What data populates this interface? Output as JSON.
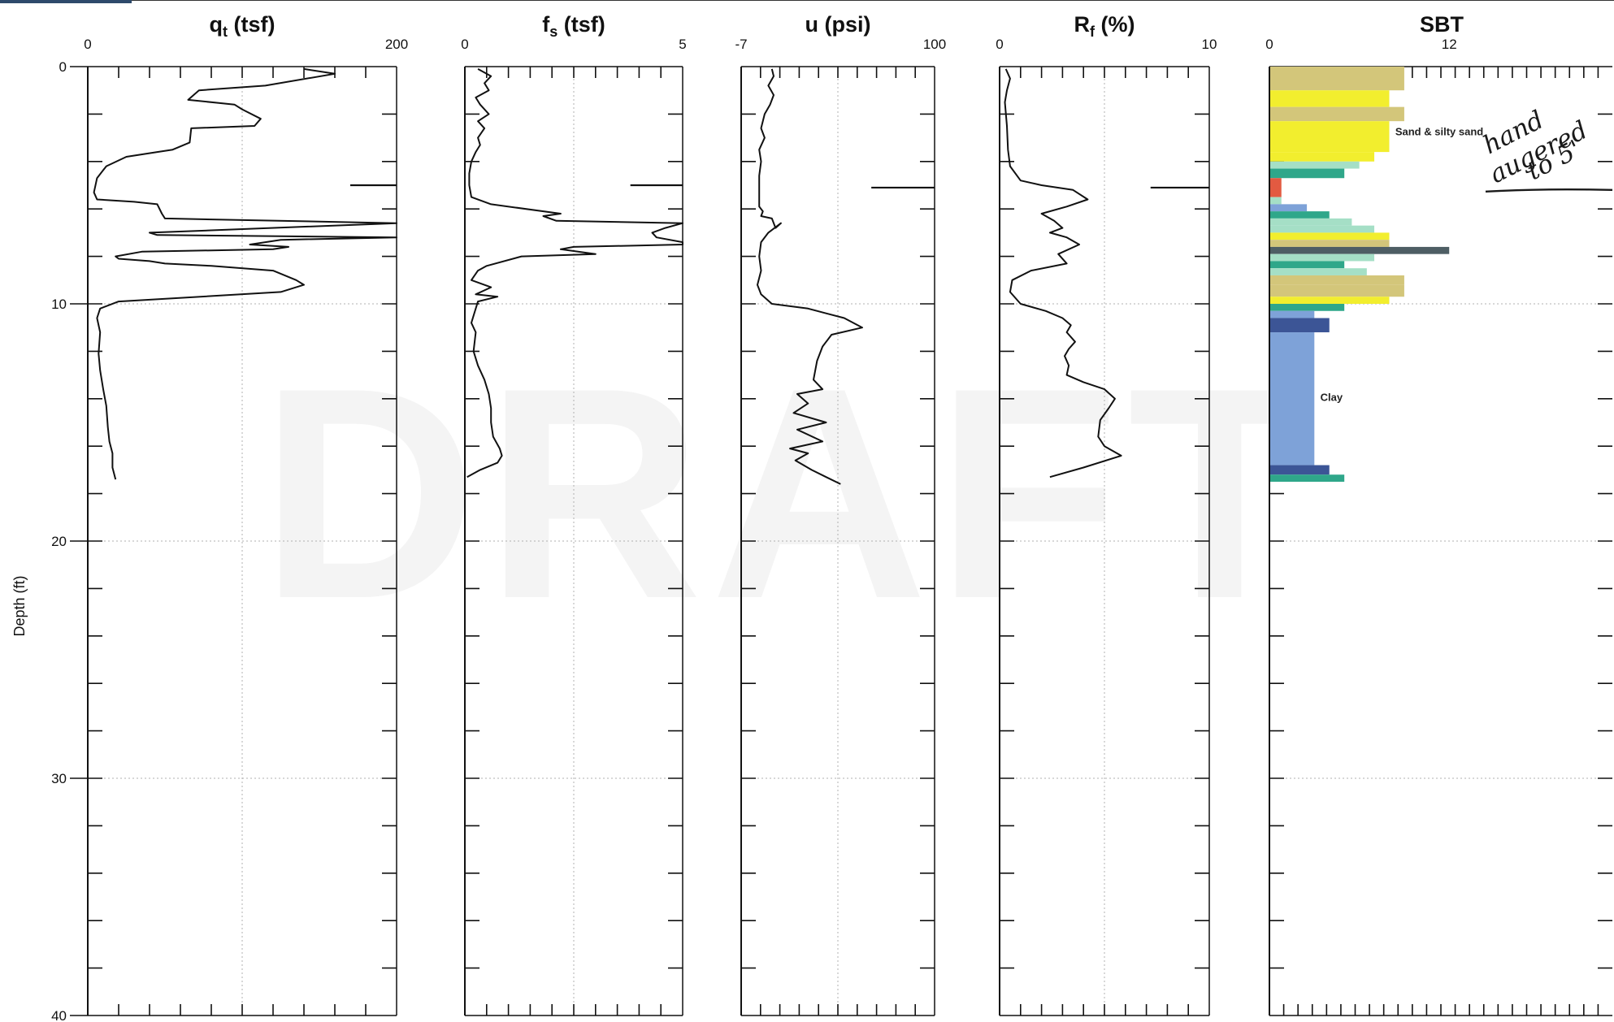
{
  "watermark": "DRAFT",
  "annotation": {
    "lines": [
      "hand",
      "augered",
      "to 5'"
    ],
    "mark_depth": 5.2
  },
  "colors": {
    "trace": "#111111",
    "grid": "#b0b0b0",
    "sbt_sand": "#f2ee2e",
    "sbt_silty_sand": "#d3c67a",
    "sbt_silt_mixture": "#2fa78a",
    "sbt_light_green": "#a5dfc6",
    "sbt_clay": "#7ea2d8",
    "sbt_dark_blue": "#3c5596",
    "sbt_gravelly": "#4e5e64",
    "sbt_sensitive": "#e35a41"
  },
  "chart_data": [
    {
      "type": "line",
      "id": "qt",
      "title": "q",
      "title_sub": "t",
      "title_tail": " (tsf)",
      "xlim": [
        0,
        200
      ],
      "xticks": [
        "0",
        "200"
      ],
      "ylim": [
        0,
        40
      ],
      "y_label": "Depth (ft)",
      "y_ticks": [
        "0",
        "10",
        "20",
        "30",
        "40"
      ],
      "points": [
        [
          140,
          0.1
        ],
        [
          160,
          0.3
        ],
        [
          115,
          0.8
        ],
        [
          72,
          1.0
        ],
        [
          65,
          1.4
        ],
        [
          95,
          1.6
        ],
        [
          100,
          1.8
        ],
        [
          112,
          2.2
        ],
        [
          108,
          2.5
        ],
        [
          67,
          2.6
        ],
        [
          66,
          3.2
        ],
        [
          55,
          3.5
        ],
        [
          45,
          3.6
        ],
        [
          25,
          3.8
        ],
        [
          12,
          4.2
        ],
        [
          6,
          4.7
        ],
        [
          4,
          5.3
        ],
        [
          6,
          5.6
        ],
        [
          30,
          5.7
        ],
        [
          45,
          5.8
        ],
        [
          48,
          6.2
        ],
        [
          50,
          6.4
        ],
        [
          200,
          6.6
        ],
        [
          80,
          6.9
        ],
        [
          40,
          7.0
        ],
        [
          45,
          7.1
        ],
        [
          200,
          7.2
        ],
        [
          125,
          7.3
        ],
        [
          105,
          7.5
        ],
        [
          130,
          7.6
        ],
        [
          120,
          7.7
        ],
        [
          35,
          7.8
        ],
        [
          18,
          8.0
        ],
        [
          20,
          8.1
        ],
        [
          40,
          8.2
        ],
        [
          50,
          8.3
        ],
        [
          80,
          8.4
        ],
        [
          120,
          8.6
        ],
        [
          135,
          9.0
        ],
        [
          140,
          9.2
        ],
        [
          125,
          9.5
        ],
        [
          20,
          9.9
        ],
        [
          8,
          10.2
        ],
        [
          6,
          10.6
        ],
        [
          8,
          11.2
        ],
        [
          7,
          12.1
        ],
        [
          8,
          12.8
        ],
        [
          10,
          13.6
        ],
        [
          12,
          14.3
        ],
        [
          13,
          15.2
        ],
        [
          14,
          15.8
        ],
        [
          16,
          16.3
        ],
        [
          16,
          16.9
        ],
        [
          18,
          17.4
        ]
      ],
      "spike": {
        "x": [
          170,
          200
        ],
        "y": 5.0
      }
    },
    {
      "type": "line",
      "id": "fs",
      "title": "f",
      "title_sub": "s",
      "title_tail": " (tsf)",
      "xlim": [
        0,
        5
      ],
      "xticks": [
        "0",
        "5"
      ],
      "ylim": [
        0,
        40
      ],
      "points": [
        [
          0.3,
          0.1
        ],
        [
          0.6,
          0.4
        ],
        [
          0.45,
          0.7
        ],
        [
          0.55,
          1.0
        ],
        [
          0.25,
          1.3
        ],
        [
          0.35,
          1.6
        ],
        [
          0.55,
          2.0
        ],
        [
          0.3,
          2.3
        ],
        [
          0.45,
          2.6
        ],
        [
          0.3,
          3.0
        ],
        [
          0.35,
          3.3
        ],
        [
          0.25,
          3.6
        ],
        [
          0.15,
          4.0
        ],
        [
          0.1,
          4.5
        ],
        [
          0.1,
          5.0
        ],
        [
          0.15,
          5.5
        ],
        [
          0.6,
          5.8
        ],
        [
          2.2,
          6.2
        ],
        [
          1.8,
          6.3
        ],
        [
          2.1,
          6.5
        ],
        [
          5.0,
          6.6
        ],
        [
          4.6,
          6.8
        ],
        [
          4.3,
          7.0
        ],
        [
          4.4,
          7.2
        ],
        [
          5.0,
          7.4
        ],
        [
          5.0,
          7.5
        ],
        [
          2.5,
          7.6
        ],
        [
          2.2,
          7.7
        ],
        [
          3.0,
          7.9
        ],
        [
          1.3,
          8.0
        ],
        [
          0.5,
          8.4
        ],
        [
          0.3,
          8.6
        ],
        [
          0.15,
          9.0
        ],
        [
          0.6,
          9.3
        ],
        [
          0.25,
          9.6
        ],
        [
          0.75,
          9.7
        ],
        [
          0.3,
          9.9
        ],
        [
          0.25,
          10.2
        ],
        [
          0.2,
          10.5
        ],
        [
          0.15,
          10.8
        ],
        [
          0.25,
          11.2
        ],
        [
          0.2,
          12.0
        ],
        [
          0.3,
          12.6
        ],
        [
          0.45,
          13.2
        ],
        [
          0.55,
          13.8
        ],
        [
          0.6,
          14.4
        ],
        [
          0.6,
          15.0
        ],
        [
          0.65,
          15.6
        ],
        [
          0.8,
          16.1
        ],
        [
          0.85,
          16.4
        ],
        [
          0.75,
          16.7
        ],
        [
          0.35,
          17.0
        ],
        [
          0.05,
          17.3
        ]
      ],
      "spike": {
        "x": [
          3.8,
          5.0
        ],
        "y": 5.0
      }
    },
    {
      "type": "line",
      "id": "u",
      "title": "u (psi)",
      "xlim": [
        -7,
        100
      ],
      "xticks": [
        "-7",
        "100"
      ],
      "ylim": [
        0,
        40
      ],
      "points": [
        [
          10,
          0.1
        ],
        [
          11,
          0.4
        ],
        [
          8,
          0.8
        ],
        [
          11,
          1.2
        ],
        [
          9,
          1.6
        ],
        [
          6,
          2.0
        ],
        [
          4,
          2.6
        ],
        [
          6,
          3.0
        ],
        [
          3,
          3.5
        ],
        [
          4,
          4.0
        ],
        [
          3,
          4.6
        ],
        [
          3,
          5.3
        ],
        [
          3,
          5.9
        ],
        [
          5,
          6.1
        ],
        [
          4,
          6.3
        ],
        [
          10,
          6.4
        ],
        [
          12,
          6.8
        ],
        [
          15,
          6.6
        ],
        [
          8,
          7.0
        ],
        [
          4,
          7.4
        ],
        [
          3,
          8.0
        ],
        [
          4,
          8.6
        ],
        [
          2,
          9.2
        ],
        [
          4,
          9.6
        ],
        [
          10,
          10.0
        ],
        [
          30,
          10.2
        ],
        [
          40,
          10.4
        ],
        [
          50,
          10.6
        ],
        [
          60,
          11.0
        ],
        [
          43,
          11.3
        ],
        [
          38,
          11.8
        ],
        [
          35,
          12.4
        ],
        [
          33,
          13.2
        ],
        [
          38,
          13.6
        ],
        [
          24,
          13.8
        ],
        [
          30,
          14.2
        ],
        [
          22,
          14.6
        ],
        [
          40,
          15.0
        ],
        [
          24,
          15.3
        ],
        [
          38,
          15.8
        ],
        [
          20,
          16.1
        ],
        [
          30,
          16.3
        ],
        [
          23,
          16.6
        ],
        [
          32,
          17.0
        ],
        [
          40,
          17.3
        ],
        [
          48,
          17.6
        ]
      ],
      "spike": {
        "x": [
          65,
          100
        ],
        "y": 5.1
      }
    },
    {
      "type": "line",
      "id": "rf",
      "title": "R",
      "title_sub": "f",
      "title_tail": " (%)",
      "xlim": [
        0,
        10
      ],
      "xticks": [
        "0",
        "10"
      ],
      "ylim": [
        0,
        40
      ],
      "points": [
        [
          0.3,
          0.1
        ],
        [
          0.5,
          0.5
        ],
        [
          0.35,
          1.0
        ],
        [
          0.25,
          1.5
        ],
        [
          0.35,
          2.5
        ],
        [
          0.4,
          3.5
        ],
        [
          0.5,
          4.2
        ],
        [
          1.0,
          4.8
        ],
        [
          2.0,
          5.0
        ],
        [
          3.5,
          5.2
        ],
        [
          4.2,
          5.6
        ],
        [
          3.2,
          5.9
        ],
        [
          2.0,
          6.2
        ],
        [
          2.6,
          6.5
        ],
        [
          3.0,
          6.8
        ],
        [
          2.4,
          7.0
        ],
        [
          3.2,
          7.2
        ],
        [
          3.8,
          7.5
        ],
        [
          2.8,
          7.9
        ],
        [
          3.2,
          8.3
        ],
        [
          1.5,
          8.6
        ],
        [
          0.6,
          9.0
        ],
        [
          0.5,
          9.5
        ],
        [
          1.0,
          10.0
        ],
        [
          2.2,
          10.3
        ],
        [
          3.0,
          10.6
        ],
        [
          3.4,
          10.9
        ],
        [
          3.2,
          11.2
        ],
        [
          3.6,
          11.6
        ],
        [
          3.3,
          11.9
        ],
        [
          3.1,
          12.2
        ],
        [
          3.3,
          12.6
        ],
        [
          3.2,
          13.0
        ],
        [
          4.0,
          13.3
        ],
        [
          5.0,
          13.6
        ],
        [
          5.5,
          14.0
        ],
        [
          5.2,
          14.4
        ],
        [
          4.8,
          14.9
        ],
        [
          4.7,
          15.6
        ],
        [
          5.0,
          16.0
        ],
        [
          5.8,
          16.4
        ],
        [
          4.0,
          16.9
        ],
        [
          2.4,
          17.3
        ]
      ],
      "spike": {
        "x": [
          7.2,
          10
        ],
        "y": 5.1
      }
    },
    {
      "type": "bar",
      "id": "sbt",
      "title": "SBT",
      "xlim": [
        0,
        23
      ],
      "xticks": [
        "0",
        "12"
      ],
      "ylim": [
        0,
        40
      ],
      "layers": [
        {
          "top": 0.0,
          "bottom": 1.0,
          "value": 9,
          "color": "#d3c67a"
        },
        {
          "top": 1.0,
          "bottom": 1.7,
          "value": 8,
          "color": "#f2ee2e"
        },
        {
          "top": 1.7,
          "bottom": 2.3,
          "value": 9,
          "color": "#d3c67a"
        },
        {
          "top": 2.3,
          "bottom": 3.6,
          "value": 8,
          "color": "#f2ee2e"
        },
        {
          "top": 3.6,
          "bottom": 4.0,
          "value": 7,
          "color": "#f2ee2e"
        },
        {
          "top": 4.0,
          "bottom": 4.3,
          "value": 6,
          "color": "#a5dfc6"
        },
        {
          "top": 4.3,
          "bottom": 4.7,
          "value": 5,
          "color": "#2fa78a"
        },
        {
          "top": 4.7,
          "bottom": 5.5,
          "value": 0.8,
          "color": "#e35a41"
        },
        {
          "top": 5.5,
          "bottom": 5.8,
          "value": 0.8,
          "color": "#a5dfc6"
        },
        {
          "top": 5.8,
          "bottom": 6.1,
          "value": 2.5,
          "color": "#7ea2d8"
        },
        {
          "top": 6.1,
          "bottom": 6.4,
          "value": 4,
          "color": "#2fa78a"
        },
        {
          "top": 6.4,
          "bottom": 6.7,
          "value": 5.5,
          "color": "#a5dfc6"
        },
        {
          "top": 6.7,
          "bottom": 7.0,
          "value": 7,
          "color": "#a5dfc6"
        },
        {
          "top": 7.0,
          "bottom": 7.3,
          "value": 8,
          "color": "#f2ee2e"
        },
        {
          "top": 7.3,
          "bottom": 7.6,
          "value": 8,
          "color": "#d3c67a"
        },
        {
          "top": 7.6,
          "bottom": 7.9,
          "value": 12,
          "color": "#4e5e64"
        },
        {
          "top": 7.9,
          "bottom": 8.2,
          "value": 7,
          "color": "#a5dfc6"
        },
        {
          "top": 8.2,
          "bottom": 8.5,
          "value": 5,
          "color": "#2fa78a"
        },
        {
          "top": 8.5,
          "bottom": 8.8,
          "value": 6.5,
          "color": "#a5dfc6"
        },
        {
          "top": 8.8,
          "bottom": 9.2,
          "value": 9,
          "color": "#d3c67a"
        },
        {
          "top": 9.2,
          "bottom": 9.7,
          "value": 9,
          "color": "#d3c67a"
        },
        {
          "top": 9.7,
          "bottom": 10.0,
          "value": 8,
          "color": "#f2ee2e"
        },
        {
          "top": 10.0,
          "bottom": 10.3,
          "value": 5,
          "color": "#2fa78a"
        },
        {
          "top": 10.3,
          "bottom": 10.6,
          "value": 3,
          "color": "#7ea2d8"
        },
        {
          "top": 10.6,
          "bottom": 11.2,
          "value": 4,
          "color": "#3c5596"
        },
        {
          "top": 11.2,
          "bottom": 16.8,
          "value": 3,
          "color": "#7ea2d8"
        },
        {
          "top": 16.8,
          "bottom": 17.2,
          "value": 4,
          "color": "#3c5596"
        },
        {
          "top": 17.2,
          "bottom": 17.5,
          "value": 5,
          "color": "#2fa78a"
        }
      ],
      "labels": [
        {
          "text": "Sand & silty sand",
          "value": 8.4,
          "depth": 2.9
        },
        {
          "text": "Clay",
          "value": 3.4,
          "depth": 14.1
        }
      ]
    }
  ]
}
